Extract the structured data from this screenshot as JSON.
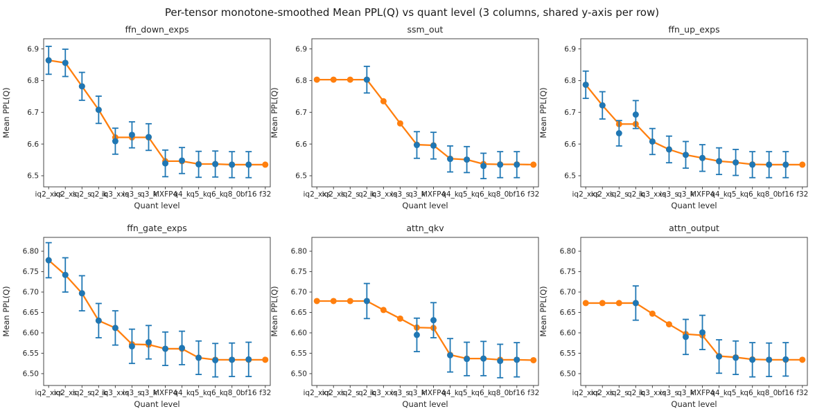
{
  "figure": {
    "title": "Per-tensor monotone-smoothed Mean PPL(Q) vs quant level (3 columns, shared y-axis per row)",
    "background": "#ffffff"
  },
  "colors": {
    "raw_points": "#1f77b4",
    "smoothed_line": "#ff7f0e",
    "spine": "#444444",
    "text": "#262626"
  },
  "categories": [
    "iq2_xxs",
    "iq2_xs",
    "iq2_s",
    "q2_k",
    "iq3_xxs",
    "iq3_s",
    "q3_k",
    "MXFP4",
    "q4_k",
    "q5_k",
    "q6_k",
    "q8_0",
    "bf16",
    "f32"
  ],
  "rows": [
    {
      "ylim": [
        6.465,
        6.932
      ],
      "yticks": [
        6.5,
        6.6,
        6.7,
        6.8,
        6.9
      ],
      "decimals": 1
    },
    {
      "ylim": [
        6.471,
        6.834
      ],
      "yticks": [
        6.5,
        6.55,
        6.6,
        6.65,
        6.7,
        6.75,
        6.8
      ],
      "decimals": 2
    }
  ],
  "chart_data": [
    {
      "type": "line",
      "title": "ffn_down_exps",
      "row": 0,
      "col": 0,
      "xlabel": "Quant level",
      "ylabel": "Mean PPL(Q)",
      "legend": "none",
      "grid": false,
      "series": [
        {
          "name": "monotone_smoothed",
          "color": "#ff7f0e",
          "draw": "line+markers",
          "values": [
            6.864,
            6.856,
            6.782,
            6.708,
            6.621,
            6.621,
            6.621,
            6.546,
            6.546,
            6.537,
            6.537,
            6.535,
            6.535,
            6.535
          ]
        },
        {
          "name": "mean_ppl",
          "color": "#1f77b4",
          "draw": "markers+errorbars",
          "values": [
            6.864,
            6.856,
            6.782,
            6.708,
            6.609,
            6.629,
            6.622,
            6.539,
            6.548,
            6.536,
            6.537,
            6.535,
            6.535,
            null
          ],
          "errors": [
            0.044,
            0.043,
            0.044,
            0.043,
            0.041,
            0.041,
            0.042,
            0.042,
            0.041,
            0.041,
            0.041,
            0.041,
            0.041,
            null
          ]
        }
      ]
    },
    {
      "type": "line",
      "title": "ssm_out",
      "row": 0,
      "col": 1,
      "xlabel": "Quant level",
      "ylabel": "Mean PPL(Q)",
      "legend": "none",
      "grid": false,
      "series": [
        {
          "name": "monotone_smoothed",
          "color": "#ff7f0e",
          "draw": "line+markers",
          "values": [
            6.803,
            6.803,
            6.803,
            6.803,
            6.735,
            6.665,
            6.598,
            6.596,
            6.554,
            6.551,
            6.537,
            6.536,
            6.536,
            6.535
          ]
        },
        {
          "name": "mean_ppl",
          "color": "#1f77b4",
          "draw": "markers+errorbars",
          "values": [
            null,
            null,
            null,
            6.803,
            null,
            null,
            6.597,
            6.595,
            6.553,
            6.551,
            6.531,
            6.535,
            6.535,
            null
          ],
          "errors": [
            null,
            null,
            null,
            0.042,
            null,
            null,
            0.042,
            0.042,
            0.041,
            0.041,
            0.04,
            0.041,
            0.041,
            null
          ]
        }
      ]
    },
    {
      "type": "line",
      "title": "ffn_up_exps",
      "row": 0,
      "col": 2,
      "xlabel": "Quant level",
      "ylabel": "Mean PPL(Q)",
      "legend": "none",
      "grid": false,
      "series": [
        {
          "name": "monotone_smoothed",
          "color": "#ff7f0e",
          "draw": "line+markers",
          "values": [
            6.787,
            6.722,
            6.663,
            6.663,
            6.608,
            6.583,
            6.566,
            6.556,
            6.546,
            6.542,
            6.536,
            6.535,
            6.535,
            6.535
          ]
        },
        {
          "name": "mean_ppl",
          "color": "#1f77b4",
          "draw": "markers+errorbars",
          "values": [
            6.787,
            6.722,
            6.634,
            6.693,
            6.608,
            6.583,
            6.566,
            6.556,
            6.546,
            6.542,
            6.535,
            6.535,
            6.535,
            null
          ],
          "errors": [
            0.043,
            0.043,
            0.04,
            0.044,
            0.041,
            0.042,
            0.042,
            0.042,
            0.042,
            0.041,
            0.041,
            0.041,
            0.041,
            null
          ]
        }
      ]
    },
    {
      "type": "line",
      "title": "ffn_gate_exps",
      "row": 1,
      "col": 0,
      "xlabel": "Quant level",
      "ylabel": "Mean PPL(Q)",
      "legend": "none",
      "grid": false,
      "series": [
        {
          "name": "monotone_smoothed",
          "color": "#ff7f0e",
          "draw": "line+markers",
          "values": [
            6.778,
            6.742,
            6.697,
            6.63,
            6.612,
            6.572,
            6.571,
            6.561,
            6.561,
            6.539,
            6.534,
            6.534,
            6.534,
            6.534
          ]
        },
        {
          "name": "mean_ppl",
          "color": "#1f77b4",
          "draw": "markers+errorbars",
          "values": [
            6.778,
            6.742,
            6.697,
            6.63,
            6.612,
            6.567,
            6.577,
            6.561,
            6.563,
            6.539,
            6.533,
            6.534,
            6.535,
            null
          ],
          "errors": [
            0.043,
            0.042,
            0.043,
            0.042,
            0.042,
            0.042,
            0.041,
            0.041,
            0.041,
            0.041,
            0.041,
            0.041,
            0.042,
            null
          ]
        }
      ]
    },
    {
      "type": "line",
      "title": "attn_qkv",
      "row": 1,
      "col": 1,
      "xlabel": "Quant level",
      "ylabel": "Mean PPL(Q)",
      "legend": "none",
      "grid": false,
      "series": [
        {
          "name": "monotone_smoothed",
          "color": "#ff7f0e",
          "draw": "line+markers",
          "values": [
            6.678,
            6.678,
            6.678,
            6.678,
            6.656,
            6.635,
            6.613,
            6.612,
            6.546,
            6.537,
            6.537,
            6.534,
            6.534,
            6.533
          ]
        },
        {
          "name": "mean_ppl",
          "color": "#1f77b4",
          "draw": "markers+errorbars",
          "values": [
            null,
            null,
            null,
            6.678,
            null,
            null,
            6.595,
            6.631,
            6.545,
            6.536,
            6.537,
            6.531,
            6.534,
            null
          ],
          "errors": [
            null,
            null,
            null,
            0.043,
            null,
            null,
            0.041,
            0.043,
            0.041,
            0.041,
            0.042,
            0.041,
            0.042,
            null
          ]
        }
      ]
    },
    {
      "type": "line",
      "title": "attn_output",
      "row": 1,
      "col": 2,
      "xlabel": "Quant level",
      "ylabel": "Mean PPL(Q)",
      "legend": "none",
      "grid": false,
      "series": [
        {
          "name": "monotone_smoothed",
          "color": "#ff7f0e",
          "draw": "line+markers",
          "values": [
            6.673,
            6.673,
            6.673,
            6.673,
            6.647,
            6.621,
            6.597,
            6.594,
            6.543,
            6.54,
            6.535,
            6.534,
            6.534,
            6.534
          ]
        },
        {
          "name": "mean_ppl",
          "color": "#1f77b4",
          "draw": "markers+errorbars",
          "values": [
            null,
            null,
            null,
            6.673,
            null,
            null,
            6.59,
            6.601,
            6.542,
            6.539,
            6.534,
            6.534,
            6.535,
            null
          ],
          "errors": [
            null,
            null,
            null,
            0.042,
            null,
            null,
            0.043,
            0.042,
            0.041,
            0.041,
            0.042,
            0.041,
            0.041,
            null
          ]
        }
      ]
    }
  ]
}
